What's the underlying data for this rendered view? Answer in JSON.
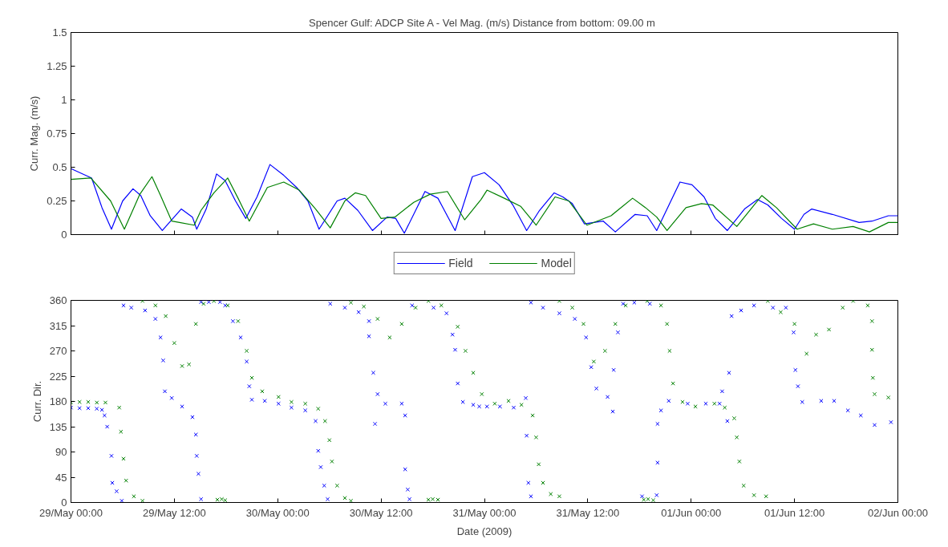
{
  "chart_data": [
    {
      "type": "line",
      "title": "Spencer Gulf: ADCP Site A - Vel Mag. (m/s) Distance from bottom:  09.00 m",
      "ylabel": "Curr. Mag. (m/s)",
      "xlim": [
        "2009-05-29T00:00",
        "2009-06-02T00:00"
      ],
      "xticks": [
        {
          "value": "2009-05-29T00:00",
          "label": null
        },
        {
          "value": "2009-05-29T12:00",
          "label": null
        },
        {
          "value": "2009-05-30T00:00",
          "label": null
        },
        {
          "value": "2009-05-30T12:00",
          "label": null
        },
        {
          "value": "2009-05-31T00:00",
          "label": null
        },
        {
          "value": "2009-05-31T12:00",
          "label": null
        },
        {
          "value": "2009-06-01T00:00",
          "label": null
        },
        {
          "value": "2009-06-01T12:00",
          "label": null
        },
        {
          "value": "2009-06-02T00:00",
          "label": null
        }
      ],
      "ylim": [
        0,
        1.5
      ],
      "yticks": [
        0,
        0.25,
        0.5,
        0.75,
        1,
        1.25,
        1.5
      ],
      "tick_labels": "y",
      "legend": "bottom",
      "series": [
        {
          "name": "Field",
          "color": "#0000ff",
          "x": [
            "2009-05-29T00:00",
            "2009-05-29T02:24",
            "2009-05-29T03:36",
            "2009-05-29T04:42",
            "2009-05-29T06:00",
            "2009-05-29T07:12",
            "2009-05-29T08:06",
            "2009-05-29T09:12",
            "2009-05-29T10:36",
            "2009-05-29T12:48",
            "2009-05-29T14:06",
            "2009-05-29T14:36",
            "2009-05-29T15:42",
            "2009-05-29T16:54",
            "2009-05-29T17:54",
            "2009-05-29T19:06",
            "2009-05-29T20:18",
            "2009-05-29T21:36",
            "2009-05-29T23:06",
            "2009-05-30T00:42",
            "2009-05-30T02:12",
            "2009-05-30T03:30",
            "2009-05-30T04:48",
            "2009-05-30T06:54",
            "2009-05-30T07:48",
            "2009-05-30T09:18",
            "2009-05-30T11:00",
            "2009-05-30T12:42",
            "2009-05-30T13:42",
            "2009-05-30T14:42",
            "2009-05-30T17:06",
            "2009-05-30T18:36",
            "2009-05-30T20:36",
            "2009-05-30T22:36",
            "2009-05-31T00:00",
            "2009-05-31T01:42",
            "2009-05-31T03:18",
            "2009-05-31T04:54",
            "2009-05-31T06:24",
            "2009-05-31T08:06",
            "2009-05-31T09:06",
            "2009-05-31T10:12",
            "2009-05-31T11:36",
            "2009-05-31T13:48",
            "2009-05-31T15:12",
            "2009-05-31T17:30",
            "2009-05-31T18:54",
            "2009-05-31T20:00",
            "2009-05-31T22:42",
            "2009-06-01T00:06",
            "2009-06-01T01:30",
            "2009-06-01T02:48",
            "2009-06-01T04:12",
            "2009-06-01T06:12",
            "2009-06-01T07:42",
            "2009-06-01T08:54",
            "2009-06-01T10:30",
            "2009-06-01T12:00",
            "2009-06-01T13:06",
            "2009-06-01T14:00",
            "2009-06-01T16:24",
            "2009-06-01T19:30",
            "2009-06-01T21:00",
            "2009-06-01T22:54",
            "2009-06-02T00:00"
          ],
          "values": [
            0.49,
            0.42,
            0.2,
            0.04,
            0.25,
            0.34,
            0.29,
            0.14,
            0.03,
            0.19,
            0.13,
            0.04,
            0.19,
            0.45,
            0.4,
            0.25,
            0.12,
            0.28,
            0.52,
            0.44,
            0.35,
            0.25,
            0.04,
            0.25,
            0.27,
            0.18,
            0.03,
            0.13,
            0.12,
            0.01,
            0.32,
            0.27,
            0.03,
            0.43,
            0.46,
            0.37,
            0.22,
            0.03,
            0.18,
            0.31,
            0.28,
            0.23,
            0.08,
            0.1,
            0.02,
            0.15,
            0.14,
            0.03,
            0.39,
            0.37,
            0.28,
            0.12,
            0.03,
            0.19,
            0.26,
            0.22,
            0.12,
            0.04,
            0.15,
            0.19,
            0.15,
            0.09,
            0.1,
            0.14,
            0.14
          ]
        },
        {
          "name": "Model",
          "color": "#008000",
          "x": [
            "2009-05-29T00:00",
            "2009-05-29T02:18",
            "2009-05-29T04:36",
            "2009-05-29T06:12",
            "2009-05-29T08:00",
            "2009-05-29T09:24",
            "2009-05-29T10:24",
            "2009-05-29T11:42",
            "2009-05-29T12:36",
            "2009-05-29T14:18",
            "2009-05-29T15:06",
            "2009-05-29T16:36",
            "2009-05-29T18:12",
            "2009-05-29T19:24",
            "2009-05-29T20:42",
            "2009-05-29T22:48",
            "2009-05-30T00:42",
            "2009-05-30T02:30",
            "2009-05-30T04:24",
            "2009-05-30T06:06",
            "2009-05-30T07:48",
            "2009-05-30T09:00",
            "2009-05-30T10:12",
            "2009-05-30T12:00",
            "2009-05-30T13:36",
            "2009-05-30T15:48",
            "2009-05-30T17:42",
            "2009-05-30T19:42",
            "2009-05-30T21:42",
            "2009-05-30T23:36",
            "2009-05-31T00:18",
            "2009-05-31T02:18",
            "2009-05-31T04:12",
            "2009-05-31T06:00",
            "2009-05-31T08:12",
            "2009-05-31T09:48",
            "2009-05-31T11:54",
            "2009-05-31T14:42",
            "2009-05-31T17:12",
            "2009-05-31T18:42",
            "2009-05-31T20:00",
            "2009-05-31T21:12",
            "2009-05-31T23:24",
            "2009-06-01T01:12",
            "2009-06-01T02:30",
            "2009-06-01T05:18",
            "2009-06-01T08:12",
            "2009-06-01T09:54",
            "2009-06-01T12:18",
            "2009-06-01T14:12",
            "2009-06-01T16:24",
            "2009-06-01T18:48",
            "2009-06-01T20:42",
            "2009-06-01T22:54",
            "2009-06-02T00:00"
          ],
          "values": [
            0.41,
            0.42,
            0.25,
            0.04,
            0.3,
            0.43,
            0.29,
            0.1,
            0.09,
            0.07,
            0.18,
            0.31,
            0.42,
            0.27,
            0.1,
            0.35,
            0.39,
            0.33,
            0.19,
            0.05,
            0.25,
            0.31,
            0.29,
            0.12,
            0.13,
            0.24,
            0.3,
            0.32,
            0.11,
            0.26,
            0.33,
            0.27,
            0.21,
            0.07,
            0.28,
            0.25,
            0.07,
            0.14,
            0.27,
            0.2,
            0.13,
            0.03,
            0.2,
            0.23,
            0.22,
            0.06,
            0.29,
            0.2,
            0.04,
            0.08,
            0.04,
            0.06,
            0.02,
            0.09,
            0.09
          ]
        }
      ]
    },
    {
      "type": "scatter",
      "xlabel": "Date (2009)",
      "ylabel": "Curr. Dir.",
      "marker": "cross",
      "xlim": [
        "2009-05-29T00:00",
        "2009-06-02T00:00"
      ],
      "xticks": [
        {
          "value": "2009-05-29T00:00",
          "label": "29/May 00:00"
        },
        {
          "value": "2009-05-29T12:00",
          "label": "29/May 12:00"
        },
        {
          "value": "2009-05-30T00:00",
          "label": "30/May 00:00"
        },
        {
          "value": "2009-05-30T12:00",
          "label": "30/May 12:00"
        },
        {
          "value": "2009-05-31T00:00",
          "label": "31/May 00:00"
        },
        {
          "value": "2009-05-31T12:00",
          "label": "31/May 12:00"
        },
        {
          "value": "2009-06-01T00:00",
          "label": "01/Jun 00:00"
        },
        {
          "value": "2009-06-01T12:00",
          "label": "01/Jun 12:00"
        },
        {
          "value": "2009-06-02T00:00",
          "label": "02/Jun 00:00"
        }
      ],
      "ylim": [
        0,
        360
      ],
      "yticks": [
        0,
        45,
        90,
        135,
        180,
        225,
        270,
        315,
        360
      ],
      "series": [
        {
          "color": "#0000ff",
          "x": [
            "2009-05-29T00:00",
            "2009-05-29T01:00",
            "2009-05-29T02:00",
            "2009-05-29T03:00",
            "2009-05-29T03:36",
            "2009-05-29T03:54",
            "2009-05-29T04:12",
            "2009-05-29T04:42",
            "2009-05-29T04:48",
            "2009-05-29T05:18",
            "2009-05-29T05:54",
            "2009-05-29T06:06",
            "2009-05-29T07:00",
            "2009-05-29T08:36",
            "2009-05-29T09:48",
            "2009-05-29T10:24",
            "2009-05-29T10:42",
            "2009-05-29T10:54",
            "2009-05-29T11:42",
            "2009-05-29T12:54",
            "2009-05-29T14:06",
            "2009-05-29T14:30",
            "2009-05-29T14:36",
            "2009-05-29T14:48",
            "2009-05-29T15:06",
            "2009-05-29T15:06",
            "2009-05-29T16:00",
            "2009-05-29T17:18",
            "2009-05-29T17:54",
            "2009-05-29T18:48",
            "2009-05-29T19:42",
            "2009-05-29T20:24",
            "2009-05-29T20:42",
            "2009-05-29T21:00",
            "2009-05-29T22:30",
            "2009-05-30T00:06",
            "2009-05-30T01:36",
            "2009-05-30T03:12",
            "2009-05-30T04:24",
            "2009-05-30T04:42",
            "2009-05-30T05:00",
            "2009-05-30T05:24",
            "2009-05-30T05:48",
            "2009-05-30T06:06",
            "2009-05-30T07:48",
            "2009-05-30T09:24",
            "2009-05-30T10:36",
            "2009-05-30T10:36",
            "2009-05-30T11:06",
            "2009-05-30T11:36",
            "2009-05-30T11:18",
            "2009-05-30T12:30",
            "2009-05-30T14:24",
            "2009-05-30T14:48",
            "2009-05-30T14:48",
            "2009-05-30T15:06",
            "2009-05-30T15:18",
            "2009-05-30T15:36",
            "2009-05-30T18:06",
            "2009-05-30T19:36",
            "2009-05-30T20:18",
            "2009-05-30T20:36",
            "2009-05-30T20:54",
            "2009-05-30T21:30",
            "2009-05-30T22:42",
            "2009-05-30T23:24",
            "2009-05-31T00:18",
            "2009-05-31T01:48",
            "2009-05-31T03:24",
            "2009-05-31T04:48",
            "2009-05-31T04:54",
            "2009-05-31T05:06",
            "2009-05-31T05:24",
            "2009-05-31T05:24",
            "2009-05-31T06:48",
            "2009-05-31T08:42",
            "2009-05-31T10:30",
            "2009-05-31T11:48",
            "2009-05-31T12:24",
            "2009-05-31T13:00",
            "2009-05-31T14:18",
            "2009-05-31T14:54",
            "2009-05-31T15:00",
            "2009-05-31T15:30",
            "2009-05-31T16:06",
            "2009-05-31T17:24",
            "2009-05-31T18:18",
            "2009-05-31T19:12",
            "2009-05-31T20:00",
            "2009-05-31T20:06",
            "2009-05-31T20:06",
            "2009-05-31T20:30",
            "2009-05-31T21:24",
            "2009-05-31T23:36",
            "2009-06-01T01:42",
            "2009-06-01T03:18",
            "2009-06-01T03:36",
            "2009-06-01T04:12",
            "2009-06-01T04:24",
            "2009-06-01T04:42",
            "2009-06-01T05:48",
            "2009-06-01T07:18",
            "2009-06-01T09:30",
            "2009-06-01T11:00",
            "2009-06-01T11:54",
            "2009-06-01T12:06",
            "2009-06-01T12:24",
            "2009-06-01T12:54",
            "2009-06-01T15:06",
            "2009-06-01T16:36",
            "2009-06-01T18:12",
            "2009-06-01T19:42",
            "2009-06-01T21:18",
            "2009-06-01T23:12"
          ],
          "values": [
            169,
            168,
            168,
            167,
            165,
            155,
            135,
            83,
            35,
            20,
            3,
            351,
            347,
            342,
            327,
            294,
            253,
            198,
            186,
            171,
            152,
            121,
            83,
            51,
            6,
            357,
            357,
            357,
            351,
            323,
            294,
            251,
            207,
            183,
            181,
            176,
            169,
            164,
            145,
            92,
            63,
            30,
            6,
            354,
            347,
            339,
            323,
            296,
            231,
            193,
            140,
            176,
            176,
            155,
            59,
            23,
            6,
            351,
            347,
            337,
            299,
            272,
            212,
            179,
            174,
            171,
            171,
            171,
            169,
            186,
            119,
            35,
            11,
            356,
            347,
            337,
            327,
            294,
            241,
            203,
            188,
            162,
            236,
            303,
            354,
            356,
            11,
            354,
            13,
            71,
            140,
            164,
            181,
            176,
            176,
            176,
            198,
            145,
            231,
            332,
            342,
            351,
            347,
            347,
            303,
            236,
            207,
            179,
            181,
            181,
            164,
            155,
            138,
            143
          ]
        },
        {
          "color": "#008000",
          "x": [
            "2009-05-29T00:00",
            "2009-05-29T01:00",
            "2009-05-29T02:00",
            "2009-05-29T03:00",
            "2009-05-29T04:00",
            "2009-05-29T05:36",
            "2009-05-29T05:48",
            "2009-05-29T06:06",
            "2009-05-29T06:24",
            "2009-05-29T07:18",
            "2009-05-29T08:18",
            "2009-05-29T08:18",
            "2009-05-29T09:48",
            "2009-05-29T11:00",
            "2009-05-29T12:00",
            "2009-05-29T12:54",
            "2009-05-29T13:42",
            "2009-05-29T14:30",
            "2009-05-29T15:24",
            "2009-05-29T16:36",
            "2009-05-29T17:00",
            "2009-05-29T17:30",
            "2009-05-29T17:54",
            "2009-05-29T18:12",
            "2009-05-29T19:24",
            "2009-05-29T20:24",
            "2009-05-29T21:00",
            "2009-05-29T22:12",
            "2009-05-30T00:06",
            "2009-05-30T01:36",
            "2009-05-30T03:12",
            "2009-05-30T04:42",
            "2009-05-30T05:30",
            "2009-05-30T06:00",
            "2009-05-30T06:18",
            "2009-05-30T06:54",
            "2009-05-30T07:48",
            "2009-05-30T08:30",
            "2009-05-30T08:30",
            "2009-05-30T10:00",
            "2009-05-30T11:36",
            "2009-05-30T13:00",
            "2009-05-30T14:24",
            "2009-05-30T16:00",
            "2009-05-30T17:30",
            "2009-05-30T17:30",
            "2009-05-30T18:00",
            "2009-05-30T18:36",
            "2009-05-30T19:00",
            "2009-05-30T20:54",
            "2009-05-30T21:48",
            "2009-05-30T22:42",
            "2009-05-30T23:42",
            "2009-05-31T01:12",
            "2009-05-31T02:48",
            "2009-05-31T04:18",
            "2009-05-31T05:36",
            "2009-05-31T06:00",
            "2009-05-31T06:18",
            "2009-05-31T06:48",
            "2009-05-31T07:42",
            "2009-05-31T08:42",
            "2009-05-31T08:42",
            "2009-05-31T10:12",
            "2009-05-31T11:30",
            "2009-05-31T12:42",
            "2009-05-31T14:00",
            "2009-05-31T15:12",
            "2009-05-31T16:24",
            "2009-05-31T18:30",
            "2009-05-31T18:54",
            "2009-05-31T19:00",
            "2009-05-31T19:36",
            "2009-05-31T20:30",
            "2009-05-31T21:12",
            "2009-05-31T21:30",
            "2009-05-31T21:54",
            "2009-05-31T23:00",
            "2009-06-01T00:30",
            "2009-06-01T02:42",
            "2009-06-01T03:54",
            "2009-06-01T05:00",
            "2009-06-01T05:18",
            "2009-06-01T05:36",
            "2009-06-01T06:06",
            "2009-06-01T07:18",
            "2009-06-01T08:42",
            "2009-06-01T08:54",
            "2009-06-01T10:24",
            "2009-06-01T12:00",
            "2009-06-01T13:24",
            "2009-06-01T14:30",
            "2009-06-01T16:00",
            "2009-06-01T17:36",
            "2009-06-01T18:48",
            "2009-06-01T20:30",
            "2009-06-01T21:00",
            "2009-06-01T21:00",
            "2009-06-01T21:06",
            "2009-06-01T21:18",
            "2009-06-01T22:54"
          ],
          "values": [
            178,
            179,
            179,
            178,
            178,
            169,
            126,
            78,
            39,
            11,
            3,
            359,
            351,
            332,
            284,
            243,
            246,
            318,
            354,
            359,
            5,
            6,
            4,
            351,
            323,
            270,
            222,
            198,
            188,
            179,
            176,
            167,
            145,
            111,
            73,
            30,
            8,
            3,
            356,
            349,
            327,
            294,
            318,
            347,
            359,
            5,
            6,
            5,
            351,
            313,
            270,
            231,
            193,
            176,
            181,
            174,
            155,
            116,
            68,
            35,
            15,
            11,
            359,
            347,
            318,
            251,
            270,
            318,
            351,
            5,
            359,
            6,
            4,
            351,
            318,
            270,
            212,
            179,
            171,
            176,
            169,
            150,
            116,
            73,
            30,
            13,
            11,
            359,
            339,
            318,
            265,
            299,
            308,
            347,
            359,
            351,
            323,
            272,
            222,
            193,
            187
          ]
        }
      ]
    }
  ]
}
